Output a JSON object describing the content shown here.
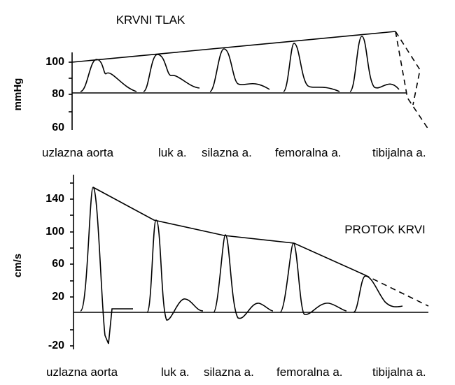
{
  "pressure": {
    "title": "KRVNI TLAK",
    "unit": "mmHg",
    "ticks": [
      "100",
      "80",
      "60"
    ],
    "sites": [
      "uzlazna aorta",
      "luk a.",
      "silazna a.",
      "femoralna a.",
      "tibijalna a."
    ]
  },
  "flow": {
    "title": "PROTOK KRVI",
    "unit": "cm/s",
    "ticks": [
      "140",
      "100",
      "60",
      "20",
      "-20"
    ],
    "sites": [
      "uzlazna aorta",
      "luk a.",
      "silazna a.",
      "femoralna a.",
      "tibijalna a."
    ]
  }
}
